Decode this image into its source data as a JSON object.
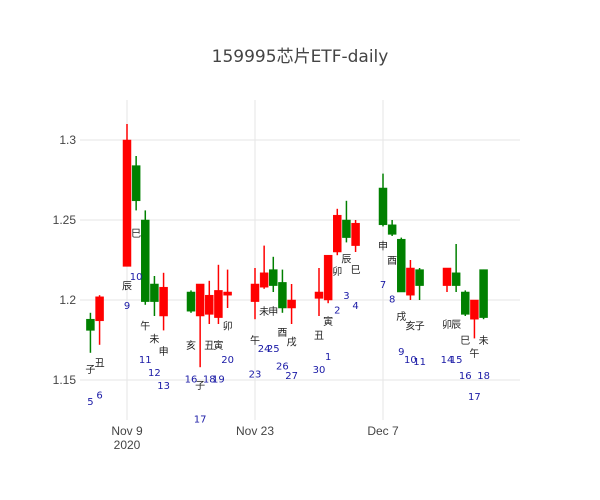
{
  "chart_data": {
    "type": "candlestick",
    "title": "159995芯片ETF-daily",
    "xlabel": "",
    "ylabel": "",
    "ylim": [
      1.125,
      1.325
    ],
    "yticks": [
      "1.15",
      "1.2",
      "1.25",
      "1.3"
    ],
    "xticks": [
      {
        "date": "2020-11-09",
        "label": "Nov 9",
        "sublabel": "2020"
      },
      {
        "date": "2020-11-23",
        "label": "Nov 23",
        "sublabel": ""
      },
      {
        "date": "2020-12-07",
        "label": "Dec 7",
        "sublabel": ""
      }
    ],
    "grid": true,
    "colors": {
      "increasing": "#ff0000",
      "decreasing": "#008000",
      "grid": "#e6e6e6",
      "annotation_number": "#1a1aa6"
    },
    "candles": [
      {
        "date": "2020-11-05",
        "open": 1.188,
        "high": 1.192,
        "low": 1.167,
        "close": 1.181,
        "branch": "子",
        "branch_y": 1.157,
        "num": "5",
        "num_y": 1.137
      },
      {
        "date": "2020-11-06",
        "open": 1.187,
        "high": 1.203,
        "low": 1.172,
        "close": 1.202,
        "branch": "丑",
        "branch_y": 1.161,
        "num": "6",
        "num_y": 1.141
      },
      {
        "date": "2020-11-09",
        "open": 1.221,
        "high": 1.31,
        "low": 1.221,
        "close": 1.3,
        "branch": "辰",
        "branch_y": 1.209,
        "num": "9",
        "num_y": 1.197
      },
      {
        "date": "2020-11-10",
        "open": 1.284,
        "high": 1.29,
        "low": 1.256,
        "close": 1.262,
        "branch": "巳",
        "branch_y": 1.242,
        "num": "10",
        "num_y": 1.215
      },
      {
        "date": "2020-11-11",
        "open": 1.25,
        "high": 1.256,
        "low": 1.197,
        "close": 1.199,
        "branch": "午",
        "branch_y": 1.184,
        "num": "11",
        "num_y": 1.163
      },
      {
        "date": "2020-11-12",
        "open": 1.21,
        "high": 1.215,
        "low": 1.19,
        "close": 1.199,
        "branch": "未",
        "branch_y": 1.176,
        "num": "12",
        "num_y": 1.155
      },
      {
        "date": "2020-11-13",
        "open": 1.19,
        "high": 1.217,
        "low": 1.181,
        "close": 1.208,
        "branch": "申",
        "branch_y": 1.168,
        "num": "13",
        "num_y": 1.147
      },
      {
        "date": "2020-11-16",
        "open": 1.205,
        "high": 1.206,
        "low": 1.192,
        "close": 1.193,
        "branch": "亥",
        "branch_y": 1.172,
        "num": "16",
        "num_y": 1.151
      },
      {
        "date": "2020-11-17",
        "open": 1.19,
        "high": 1.21,
        "low": 1.158,
        "close": 1.21,
        "branch": "子",
        "branch_y": 1.147,
        "num": "17",
        "num_y": 1.126
      },
      {
        "date": "2020-11-18",
        "open": 1.191,
        "high": 1.212,
        "low": 1.185,
        "close": 1.203,
        "branch": "丑",
        "branch_y": 1.172,
        "num": "18",
        "num_y": 1.151
      },
      {
        "date": "2020-11-19",
        "open": 1.189,
        "high": 1.222,
        "low": 1.185,
        "close": 1.206,
        "branch": "寅",
        "branch_y": 1.172,
        "num": "19",
        "num_y": 1.151
      },
      {
        "date": "2020-11-20",
        "open": 1.203,
        "high": 1.219,
        "low": 1.195,
        "close": 1.205,
        "branch": "卯",
        "branch_y": 1.184,
        "num": "20",
        "num_y": 1.163
      },
      {
        "date": "2020-11-23",
        "open": 1.199,
        "high": 1.22,
        "low": 1.188,
        "close": 1.21,
        "branch": "午",
        "branch_y": 1.175,
        "num": "23",
        "num_y": 1.154
      },
      {
        "date": "2020-11-24",
        "open": 1.208,
        "high": 1.234,
        "low": 1.207,
        "close": 1.217,
        "branch": "未",
        "branch_y": 1.193,
        "num": "24",
        "num_y": 1.17
      },
      {
        "date": "2020-11-25",
        "open": 1.219,
        "high": 1.227,
        "low": 1.205,
        "close": 1.209,
        "branch": "申",
        "branch_y": 1.193,
        "num": "25",
        "num_y": 1.17
      },
      {
        "date": "2020-11-26",
        "open": 1.211,
        "high": 1.219,
        "low": 1.192,
        "close": 1.195,
        "branch": "酉",
        "branch_y": 1.18,
        "num": "26",
        "num_y": 1.159
      },
      {
        "date": "2020-11-27",
        "open": 1.195,
        "high": 1.21,
        "low": 1.185,
        "close": 1.2,
        "branch": "戌",
        "branch_y": 1.174,
        "num": "27",
        "num_y": 1.153
      },
      {
        "date": "2020-11-30",
        "open": 1.201,
        "high": 1.22,
        "low": 1.19,
        "close": 1.205,
        "branch": "丑",
        "branch_y": 1.178,
        "num": "30",
        "num_y": 1.157
      },
      {
        "date": "2020-12-01",
        "open": 1.2,
        "high": 1.228,
        "low": 1.198,
        "close": 1.228,
        "branch": "寅",
        "branch_y": 1.187,
        "num": "1",
        "num_y": 1.165
      },
      {
        "date": "2020-12-02",
        "open": 1.23,
        "high": 1.257,
        "low": 1.228,
        "close": 1.253,
        "branch": "卯",
        "branch_y": 1.218,
        "num": "2",
        "num_y": 1.194
      },
      {
        "date": "2020-12-03",
        "open": 1.25,
        "high": 1.262,
        "low": 1.236,
        "close": 1.239,
        "branch": "辰",
        "branch_y": 1.226,
        "num": "3",
        "num_y": 1.203
      },
      {
        "date": "2020-12-04",
        "open": 1.234,
        "high": 1.25,
        "low": 1.23,
        "close": 1.248,
        "branch": "巳",
        "branch_y": 1.219,
        "num": "4",
        "num_y": 1.197
      },
      {
        "date": "2020-12-07",
        "open": 1.27,
        "high": 1.279,
        "low": 1.246,
        "close": 1.247,
        "branch": "申",
        "branch_y": 1.234,
        "num": "7",
        "num_y": 1.21
      },
      {
        "date": "2020-12-08",
        "open": 1.247,
        "high": 1.25,
        "low": 1.24,
        "close": 1.241,
        "branch": "酉",
        "branch_y": 1.225,
        "num": "8",
        "num_y": 1.201
      },
      {
        "date": "2020-12-09",
        "open": 1.238,
        "high": 1.239,
        "low": 1.205,
        "close": 1.205,
        "branch": "戌",
        "branch_y": 1.19,
        "num": "9",
        "num_y": 1.168
      },
      {
        "date": "2020-12-10",
        "open": 1.203,
        "high": 1.225,
        "low": 1.2,
        "close": 1.22,
        "branch": "亥",
        "branch_y": 1.184,
        "num": "10",
        "num_y": 1.163
      },
      {
        "date": "2020-12-11",
        "open": 1.219,
        "high": 1.22,
        "low": 1.2,
        "close": 1.209,
        "branch": "子",
        "branch_y": 1.184,
        "num": "11",
        "num_y": 1.162
      },
      {
        "date": "2020-12-14",
        "open": 1.209,
        "high": 1.22,
        "low": 1.205,
        "close": 1.22,
        "branch": "卯",
        "branch_y": 1.185,
        "num": "14",
        "num_y": 1.163
      },
      {
        "date": "2020-12-15",
        "open": 1.217,
        "high": 1.235,
        "low": 1.205,
        "close": 1.209,
        "branch": "辰",
        "branch_y": 1.185,
        "num": "15",
        "num_y": 1.163
      },
      {
        "date": "2020-12-16",
        "open": 1.205,
        "high": 1.206,
        "low": 1.19,
        "close": 1.191,
        "branch": "巳",
        "branch_y": 1.175,
        "num": "16",
        "num_y": 1.153
      },
      {
        "date": "2020-12-17",
        "open": 1.188,
        "high": 1.2,
        "low": 1.176,
        "close": 1.2,
        "branch": "午",
        "branch_y": 1.167,
        "num": "17",
        "num_y": 1.14
      },
      {
        "date": "2020-12-18",
        "open": 1.219,
        "high": 1.219,
        "low": 1.188,
        "close": 1.189,
        "branch": "未",
        "branch_y": 1.175,
        "num": "18",
        "num_y": 1.153
      }
    ]
  }
}
